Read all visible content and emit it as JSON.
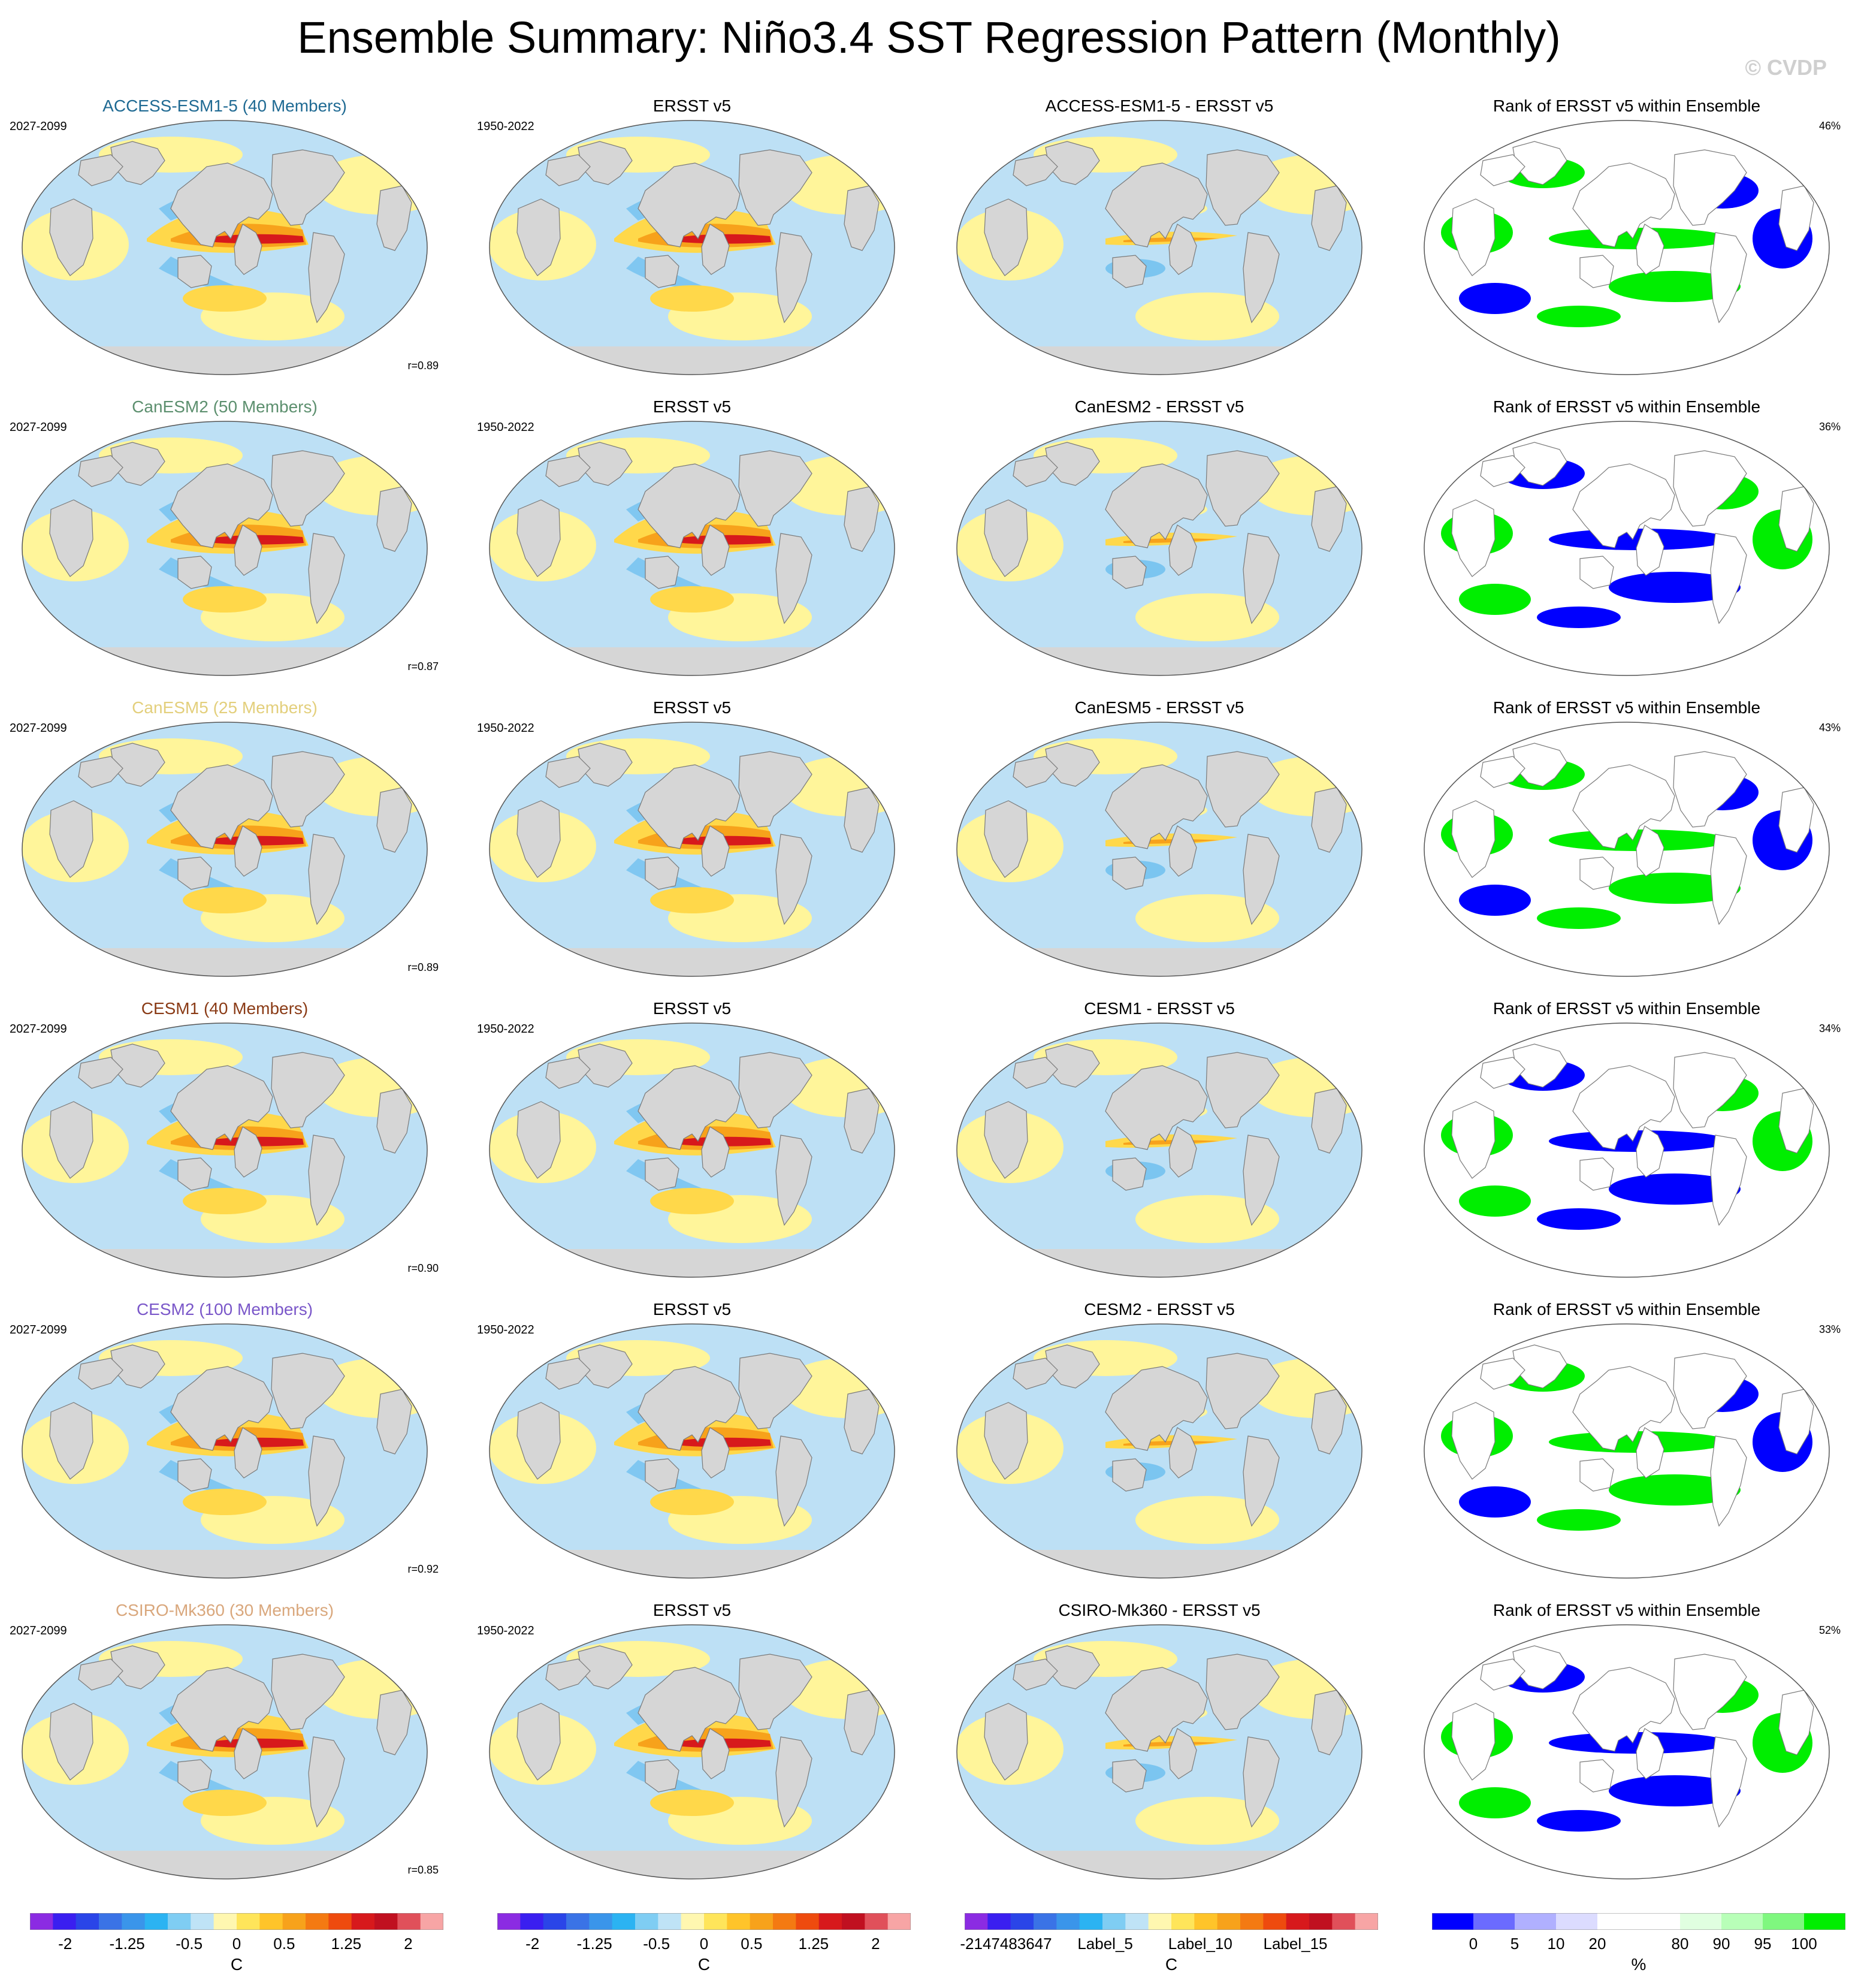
{
  "title": "Ensemble Summary: Niño3.4 SST Regression Pattern (Monthly)",
  "watermark": "© CVDP",
  "colors": {
    "land": "#d6d6d6",
    "coast": "#7a7a7a",
    "ocean_light_blue": "#bde0f5",
    "ocean_light_yellow": "#fff59a",
    "warm_orange": "#f7a21b",
    "warm_red": "#d7191c",
    "cool_blue": "#4fb3ec",
    "rank_blue": "#0000ff",
    "rank_green": "#00ee00"
  },
  "rows": [
    {
      "model": "ACCESS-ESM1-5 (40 Members)",
      "model_color": "#1f6a93",
      "period": "2027-2099",
      "obs_title": "ERSST v5",
      "obs_period": "1950-2022",
      "diff_title": "ACCESS-ESM1-5 - ERSST v5",
      "rank_title": "Rank of ERSST v5 within Ensemble",
      "rank_pct": "46%",
      "corr": "r=0.89"
    },
    {
      "model": "CanESM2 (50 Members)",
      "model_color": "#5c8f6e",
      "period": "2027-2099",
      "obs_title": "ERSST v5",
      "obs_period": "1950-2022",
      "diff_title": "CanESM2 - ERSST v5",
      "rank_title": "Rank of ERSST v5 within Ensemble",
      "rank_pct": "36%",
      "corr": "r=0.87"
    },
    {
      "model": "CanESM5 (25 Members)",
      "model_color": "#e3cf7c",
      "period": "2027-2099",
      "obs_title": "ERSST v5",
      "obs_period": "1950-2022",
      "diff_title": "CanESM5 - ERSST v5",
      "rank_title": "Rank of ERSST v5 within Ensemble",
      "rank_pct": "43%",
      "corr": "r=0.89"
    },
    {
      "model": "CESM1 (40 Members)",
      "model_color": "#8a3b16",
      "period": "2027-2099",
      "obs_title": "ERSST v5",
      "obs_period": "1950-2022",
      "diff_title": "CESM1 - ERSST v5",
      "rank_title": "Rank of ERSST v5 within Ensemble",
      "rank_pct": "34%",
      "corr": "r=0.90"
    },
    {
      "model": "CESM2 (100 Members)",
      "model_color": "#7a57c9",
      "period": "2027-2099",
      "obs_title": "ERSST v5",
      "obs_period": "1950-2022",
      "diff_title": "CESM2 - ERSST v5",
      "rank_title": "Rank of ERSST v5 within Ensemble",
      "rank_pct": "33%",
      "corr": "r=0.92"
    },
    {
      "model": "CSIRO-Mk360 (30 Members)",
      "model_color": "#d9a77c",
      "period": "2027-2099",
      "obs_title": "ERSST v5",
      "obs_period": "1950-2022",
      "diff_title": "CSIRO-Mk360 - ERSST v5",
      "rank_title": "Rank of ERSST v5 within Ensemble",
      "rank_pct": "52%",
      "corr": "r=0.85"
    }
  ],
  "colorbars": [
    {
      "unit": "C",
      "colors": [
        "#8b2be2",
        "#3a1ff0",
        "#2a45e8",
        "#3a73e6",
        "#3a95ea",
        "#2bb3f2",
        "#7fcdf3",
        "#bfe3f6",
        "#fff7b0",
        "#ffe55a",
        "#ffc42a",
        "#f7a21b",
        "#f47a12",
        "#ee4b0e",
        "#d7191c",
        "#c01020",
        "#e0505a",
        "#f7a5a5"
      ],
      "ticks": [
        {
          "label": "-2",
          "pos": 0.085
        },
        {
          "label": "-1.25",
          "pos": 0.235
        },
        {
          "label": "-0.5",
          "pos": 0.385
        },
        {
          "label": "0",
          "pos": 0.5
        },
        {
          "label": "0.5",
          "pos": 0.615
        },
        {
          "label": "1.25",
          "pos": 0.765
        },
        {
          "label": "2",
          "pos": 0.915
        }
      ]
    },
    {
      "unit": "C",
      "colors": [
        "#8b2be2",
        "#3a1ff0",
        "#2a45e8",
        "#3a73e6",
        "#3a95ea",
        "#2bb3f2",
        "#7fcdf3",
        "#bfe3f6",
        "#fff7b0",
        "#ffe55a",
        "#ffc42a",
        "#f7a21b",
        "#f47a12",
        "#ee4b0e",
        "#d7191c",
        "#c01020",
        "#e0505a",
        "#f7a5a5"
      ],
      "ticks": [
        {
          "label": "-2",
          "pos": 0.085
        },
        {
          "label": "-1.25",
          "pos": 0.235
        },
        {
          "label": "-0.5",
          "pos": 0.385
        },
        {
          "label": "0",
          "pos": 0.5
        },
        {
          "label": "0.5",
          "pos": 0.615
        },
        {
          "label": "1.25",
          "pos": 0.765
        },
        {
          "label": "2",
          "pos": 0.915
        }
      ]
    },
    {
      "unit": "C",
      "colors": [
        "#8b2be2",
        "#3a1ff0",
        "#2a45e8",
        "#3a73e6",
        "#3a95ea",
        "#2bb3f2",
        "#7fcdf3",
        "#bfe3f6",
        "#fff7b0",
        "#ffe55a",
        "#ffc42a",
        "#f7a21b",
        "#f47a12",
        "#ee4b0e",
        "#d7191c",
        "#c01020",
        "#e0505a",
        "#f7a5a5"
      ],
      "ticks": [
        {
          "label": "-2147483647",
          "pos": 0.1
        },
        {
          "label": "Label_5",
          "pos": 0.34
        },
        {
          "label": "Label_10",
          "pos": 0.57
        },
        {
          "label": "Label_15",
          "pos": 0.8
        }
      ]
    },
    {
      "unit": "%",
      "colors": [
        "#0000ff",
        "#6b6bff",
        "#b0b0ff",
        "#dcdcff",
        "#ffffff",
        "#ffffff",
        "#e0ffe0",
        "#b8ffb8",
        "#7ff77f",
        "#00ee00"
      ],
      "ticks": [
        {
          "label": "0",
          "pos": 0.1
        },
        {
          "label": "5",
          "pos": 0.2
        },
        {
          "label": "10",
          "pos": 0.3
        },
        {
          "label": "20",
          "pos": 0.4
        },
        {
          "label": "80",
          "pos": 0.6
        },
        {
          "label": "90",
          "pos": 0.7
        },
        {
          "label": "95",
          "pos": 0.8
        },
        {
          "label": "100",
          "pos": 0.9
        }
      ]
    }
  ]
}
